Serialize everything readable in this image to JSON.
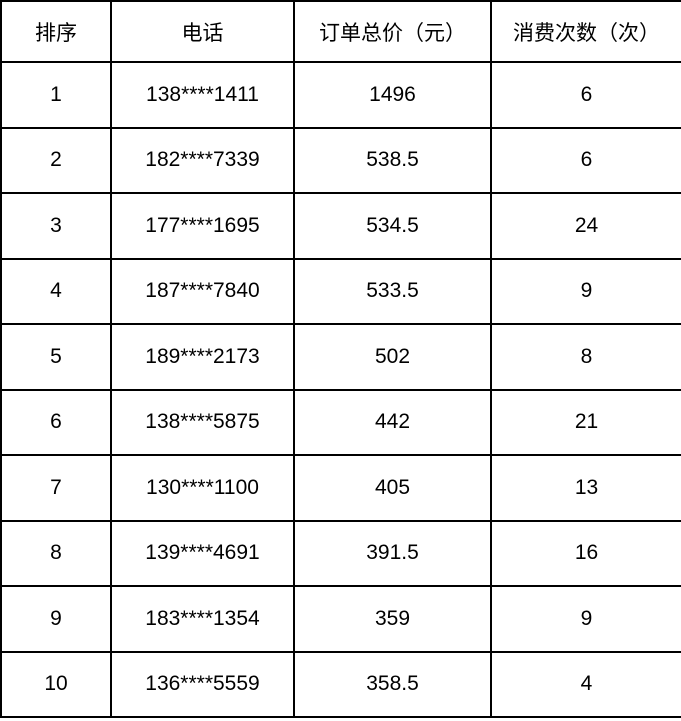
{
  "page": {
    "background_color": "#ffffff",
    "border_color": "#000000",
    "text_color": "#000000"
  },
  "table": {
    "columns": [
      {
        "id": "rank",
        "label": "排序"
      },
      {
        "id": "phone",
        "label": "电话"
      },
      {
        "id": "order_total",
        "label": "订单总价（元）"
      },
      {
        "id": "visit_count",
        "label": "消费次数（次）"
      }
    ],
    "rows": [
      [
        "1",
        "138****1411",
        "1496",
        "6"
      ],
      [
        "2",
        "182****7339",
        "538.5",
        "6"
      ],
      [
        "3",
        "177****1695",
        "534.5",
        "24"
      ],
      [
        "4",
        "187****7840",
        "533.5",
        "9"
      ],
      [
        "5",
        "189****2173",
        "502",
        "8"
      ],
      [
        "6",
        "138****5875",
        "442",
        "21"
      ],
      [
        "7",
        "130****1100",
        "405",
        "13"
      ],
      [
        "8",
        "139****4691",
        "391.5",
        "16"
      ],
      [
        "9",
        "183****1354",
        "359",
        "9"
      ],
      [
        "10",
        "136****5559",
        "358.5",
        "4"
      ]
    ]
  }
}
